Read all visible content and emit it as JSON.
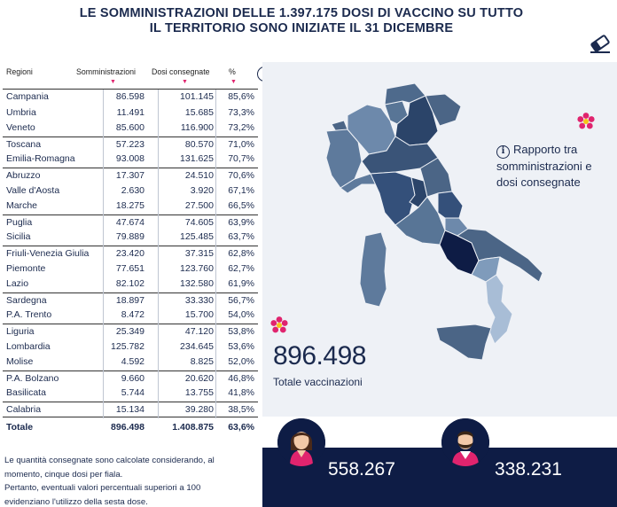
{
  "title": {
    "line1": "LE SOMMINISTRAZIONI DELLE 1.397.175 DOSI DI VACCINO SU TUTTO",
    "line2": "IL TERRITORIO SONO INIZIATE IL 31 DICEMBRE"
  },
  "icons": {
    "eraser": "eraser-icon",
    "info": "info-icon",
    "flower": "flower-icon",
    "female": "female-avatar-icon",
    "male": "male-avatar-icon"
  },
  "colors": {
    "navy": "#0e1c45",
    "accent": "#e0246e",
    "map_dark": "#2b4469",
    "map_mid": "#5e7a9c",
    "map_light": "#a8bdd6"
  },
  "table": {
    "headers": {
      "region": "Regioni",
      "administered": "Somministrazioni",
      "delivered": "Dosi consegnate",
      "pct": "%"
    },
    "rows": [
      {
        "region": "Campania",
        "administered": "86.598",
        "delivered": "101.145",
        "pct": "85,6%"
      },
      {
        "region": "Umbria",
        "administered": "11.491",
        "delivered": "15.685",
        "pct": "73,3%"
      },
      {
        "region": "Veneto",
        "administered": "85.600",
        "delivered": "116.900",
        "pct": "73,2%"
      },
      {
        "region": "Toscana",
        "administered": "57.223",
        "delivered": "80.570",
        "pct": "71,0%"
      },
      {
        "region": "Emilia-Romagna",
        "administered": "93.008",
        "delivered": "131.625",
        "pct": "70,7%"
      },
      {
        "region": "Abruzzo",
        "administered": "17.307",
        "delivered": "24.510",
        "pct": "70,6%"
      },
      {
        "region": "Valle d'Aosta",
        "administered": "2.630",
        "delivered": "3.920",
        "pct": "67,1%"
      },
      {
        "region": "Marche",
        "administered": "18.275",
        "delivered": "27.500",
        "pct": "66,5%"
      },
      {
        "region": "Puglia",
        "administered": "47.674",
        "delivered": "74.605",
        "pct": "63,9%"
      },
      {
        "region": "Sicilia",
        "administered": "79.889",
        "delivered": "125.485",
        "pct": "63,7%"
      },
      {
        "region": "Friuli-Venezia Giulia",
        "administered": "23.420",
        "delivered": "37.315",
        "pct": "62,8%"
      },
      {
        "region": "Piemonte",
        "administered": "77.651",
        "delivered": "123.760",
        "pct": "62,7%"
      },
      {
        "region": "Lazio",
        "administered": "82.102",
        "delivered": "132.580",
        "pct": "61,9%"
      },
      {
        "region": "Sardegna",
        "administered": "18.897",
        "delivered": "33.330",
        "pct": "56,7%"
      },
      {
        "region": "P.A. Trento",
        "administered": "8.472",
        "delivered": "15.700",
        "pct": "54,0%"
      },
      {
        "region": "Liguria",
        "administered": "25.349",
        "delivered": "47.120",
        "pct": "53,8%"
      },
      {
        "region": "Lombardia",
        "administered": "125.782",
        "delivered": "234.645",
        "pct": "53,6%"
      },
      {
        "region": "Molise",
        "administered": "4.592",
        "delivered": "8.825",
        "pct": "52,0%"
      },
      {
        "region": "P.A. Bolzano",
        "administered": "9.660",
        "delivered": "20.620",
        "pct": "46,8%"
      },
      {
        "region": "Basilicata",
        "administered": "5.744",
        "delivered": "13.755",
        "pct": "41,8%"
      },
      {
        "region": "Calabria",
        "administered": "15.134",
        "delivered": "39.280",
        "pct": "38,5%"
      }
    ],
    "total": {
      "region": "Totale",
      "administered": "896.498",
      "delivered": "1.408.875",
      "pct": "63,6%"
    }
  },
  "note": {
    "line1": "Le quantità consegnate sono calcolate considerando, al",
    "line2": "momento, cinque dosi per fiala.",
    "line3": "Pertanto, eventuali valori percentuali superiori a 100",
    "line4": "evidenziano l'utilizzo della sesta dose."
  },
  "legend": {
    "text": "Rapporto tra somministrazioni e dosi consegnate"
  },
  "summary": {
    "total_value": "896.498",
    "total_label": "Totale vaccinazioni",
    "female_count": "558.267",
    "male_count": "338.231"
  }
}
